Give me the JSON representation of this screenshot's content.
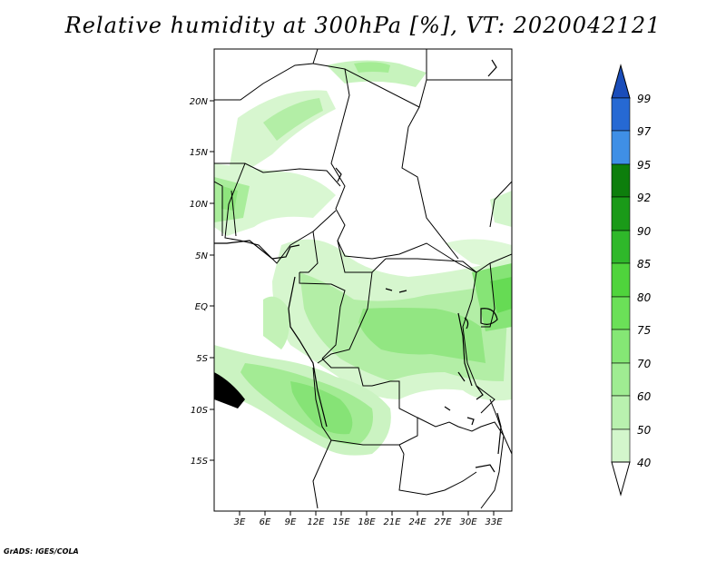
{
  "title": "Relative humidity at 300hPa [%], VT: 2020042121",
  "credit": "GrADS: IGES/COLA",
  "lat_labels": [
    "20N",
    "15N",
    "10N",
    "5N",
    "EQ",
    "5S",
    "10S",
    "15S"
  ],
  "lon_labels": [
    "3E",
    "6E",
    "9E",
    "12E",
    "15E",
    "18E",
    "21E",
    "24E",
    "27E",
    "30E",
    "33E"
  ],
  "colorbar": {
    "labels": [
      "40",
      "50",
      "60",
      "70",
      "75",
      "80",
      "85",
      "90",
      "92",
      "95",
      "97",
      "99"
    ],
    "colors": [
      "#ecfbe9",
      "#d3f6cc",
      "#b9f1af",
      "#9fec92",
      "#85e775",
      "#6be058",
      "#4fd43c",
      "#2fb82a",
      "#1a9a18",
      "#0d7e0c",
      "#3f8fe6",
      "#2669d3",
      "#1a4dba"
    ]
  }
}
